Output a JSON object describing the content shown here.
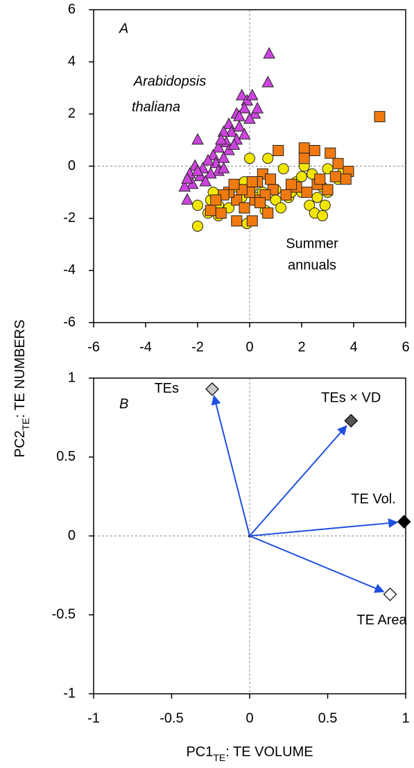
{
  "chart_data": [
    {
      "type": "scatter",
      "y_label": {
        "main": "PC2",
        "sub": "TE",
        "rest": ": TE NUMBERS"
      },
      "xlim": [
        -6,
        6
      ],
      "ylim": [
        -6,
        6
      ],
      "xticks": [
        -6,
        -4,
        -2,
        0,
        2,
        4,
        6
      ],
      "yticks": [
        -6,
        -4,
        -2,
        0,
        2,
        4,
        6
      ],
      "annotations": [
        "A",
        "Arabidopsis",
        "thaliana",
        "Summer",
        "annuals"
      ],
      "series": [
        {
          "marker": "triangle",
          "color": "#cc44dd",
          "x": [
            0.75,
            0.7,
            -0.3,
            -0.1,
            0.1,
            -0.2,
            0.2,
            -0.5,
            0.0,
            -0.4,
            -0.8,
            -0.7,
            -0.2,
            -1.0,
            -0.9,
            -0.5,
            -0.8,
            -1.2,
            -1.0,
            -1.4,
            -1.3,
            -1.6,
            -1.2,
            -1.5,
            -1.8,
            -2.0,
            -2.1,
            -1.9,
            -2.3,
            -2.2,
            -2.5,
            -2.4,
            -1.7,
            -2.0,
            -1.0,
            0.3,
            -0.4,
            -0.6,
            -1.1,
            -2.4
          ],
          "values": [
            4.3,
            3.2,
            2.7,
            2.5,
            2.7,
            2.2,
            2.0,
            2.0,
            1.8,
            1.5,
            1.6,
            1.3,
            1.2,
            1.3,
            0.9,
            1.0,
            0.6,
            0.7,
            0.3,
            0.4,
            0.1,
            0.2,
            -0.2,
            -0.3,
            -0.1,
            1.0,
            0.0,
            -0.4,
            -0.3,
            -0.7,
            -0.8,
            -1.3,
            -0.6,
            -0.2,
            -0.1,
            2.2,
            1.9,
            0.8,
            1.0,
            -0.5
          ]
        },
        {
          "marker": "circle",
          "color": "#f2e600",
          "x": [
            -2.0,
            -2.0,
            -1.5,
            -1.2,
            -1.6,
            -1.2,
            -0.8,
            -0.5,
            -0.6,
            -0.2,
            0.1,
            -0.1,
            0.3,
            0.0,
            0.7,
            0.5,
            1.0,
            1.2,
            1.0,
            1.5,
            1.8,
            2.0,
            2.3,
            2.1,
            2.0,
            2.5,
            2.6,
            2.8,
            2.9,
            3.0,
            3.4,
            3.6,
            2.4,
            1.3,
            0.6,
            -0.3,
            -1.4,
            3.0,
            2.8,
            1.6
          ],
          "values": [
            -2.3,
            -1.5,
            -1.3,
            -1.5,
            -1.8,
            -1.9,
            -1.6,
            -1.3,
            -0.8,
            -0.6,
            -0.8,
            -2.2,
            -1.2,
            0.3,
            0.3,
            -1.0,
            -1.3,
            -1.6,
            -0.9,
            -1.2,
            -0.6,
            -1.0,
            -1.5,
            0.0,
            -0.4,
            -1.8,
            -1.2,
            -0.8,
            -1.5,
            -1.0,
            -0.5,
            -0.2,
            -0.3,
            -0.1,
            -1.7,
            -1.2,
            -1.0,
            -0.1,
            -1.9,
            -1.0
          ]
        },
        {
          "marker": "square",
          "color": "#f07a10",
          "x": [
            5.0,
            1.1,
            2.1,
            2.5,
            3.1,
            2.1,
            3.4,
            3.8,
            3.7,
            0.5,
            0.3,
            0.8,
            0.9,
            0.6,
            0.2,
            0.0,
            -0.3,
            -0.5,
            -0.8,
            -1.0,
            -1.3,
            -1.5,
            -1.1,
            -0.5,
            0.1,
            0.7,
            -0.2,
            0.4,
            1.4,
            1.8,
            2.2,
            2.6,
            3.0,
            3.3,
            1.6,
            -0.6,
            0.1,
            2.7
          ],
          "values": [
            1.9,
            0.6,
            0.7,
            0.6,
            0.5,
            0.3,
            0.1,
            -0.2,
            -0.5,
            -0.3,
            -0.6,
            -0.5,
            -0.9,
            -1.1,
            -1.3,
            -1.0,
            -0.9,
            -1.3,
            -1.0,
            -1.1,
            -1.3,
            -1.7,
            -1.8,
            -2.1,
            -2.1,
            -1.8,
            -1.6,
            -1.4,
            -1.1,
            -0.8,
            -1.0,
            -0.7,
            -0.9,
            -0.4,
            -0.7,
            -0.7,
            -0.6,
            -0.5
          ]
        }
      ]
    },
    {
      "type": "biplot",
      "x_label": {
        "main": "PC1",
        "sub": "TE",
        "rest": ": TE VOLUME"
      },
      "xlim": [
        -1,
        1
      ],
      "ylim": [
        -1,
        1
      ],
      "xticks": [
        -1,
        -0.5,
        0,
        0.5,
        1
      ],
      "yticks": [
        -1,
        -0.5,
        0,
        0.5,
        1
      ],
      "annotations": [
        "B"
      ],
      "arrow_color": "#1f4fe0",
      "labels": [
        "TEs",
        "TEs × VD",
        "TE Vol.",
        "TE Area"
      ],
      "x": [
        -0.24,
        0.65,
        0.99,
        0.9
      ],
      "values": [
        0.93,
        0.73,
        0.09,
        -0.37
      ],
      "colors": [
        "#c8c8c8",
        "#555555",
        "#000000",
        "#ffffff"
      ]
    }
  ]
}
